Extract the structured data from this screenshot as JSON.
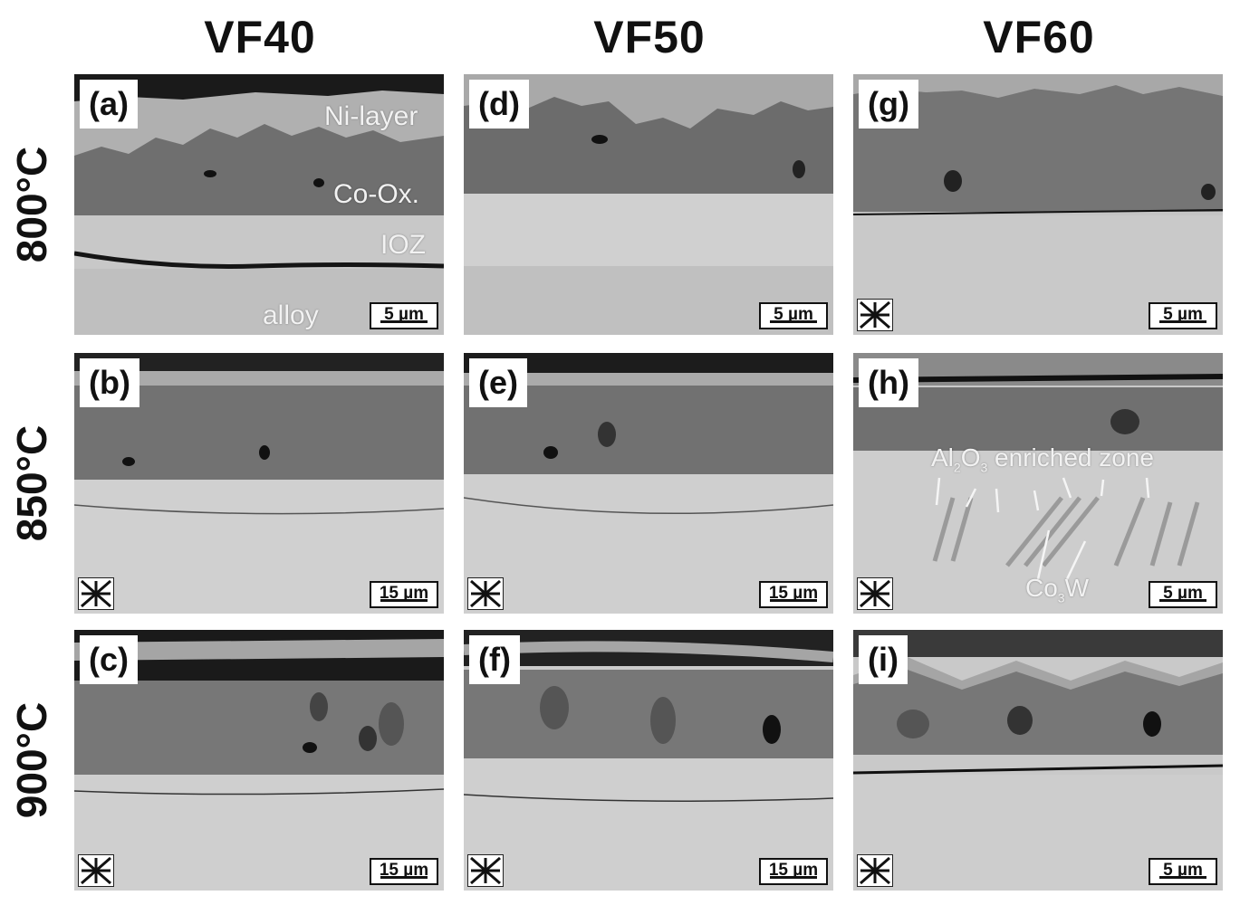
{
  "columns": [
    "VF40",
    "VF50",
    "VF60"
  ],
  "rows": [
    "800°C",
    "850°C",
    "900°C"
  ],
  "panels": [
    {
      "label": "(a)",
      "scale": "5 µm",
      "orientation_icon": false,
      "annotations": [
        "Ni-layer",
        "Co-Ox.",
        "IOZ",
        "alloy"
      ]
    },
    {
      "label": "(d)",
      "scale": "5 µm",
      "orientation_icon": false
    },
    {
      "label": "(g)",
      "scale": "5 µm",
      "orientation_icon": true
    },
    {
      "label": "(b)",
      "scale": "15 µm",
      "orientation_icon": true
    },
    {
      "label": "(e)",
      "scale": "15 µm",
      "orientation_icon": true
    },
    {
      "label": "(h)",
      "scale": "5 µm",
      "orientation_icon": true,
      "annotation_zone_prefix": "Al",
      "annotation_zone_sub1": "2",
      "annotation_zone_mid": "O",
      "annotation_zone_sub2": "3",
      "annotation_zone_suffix": " enriched zone",
      "annotation_phase_prefix": "Co",
      "annotation_phase_sub": "3",
      "annotation_phase_suffix": "W"
    },
    {
      "label": "(c)",
      "scale": "15 µm",
      "orientation_icon": true
    },
    {
      "label": "(f)",
      "scale": "15 µm",
      "orientation_icon": true
    },
    {
      "label": "(i)",
      "scale": "5 µm",
      "orientation_icon": true
    }
  ]
}
